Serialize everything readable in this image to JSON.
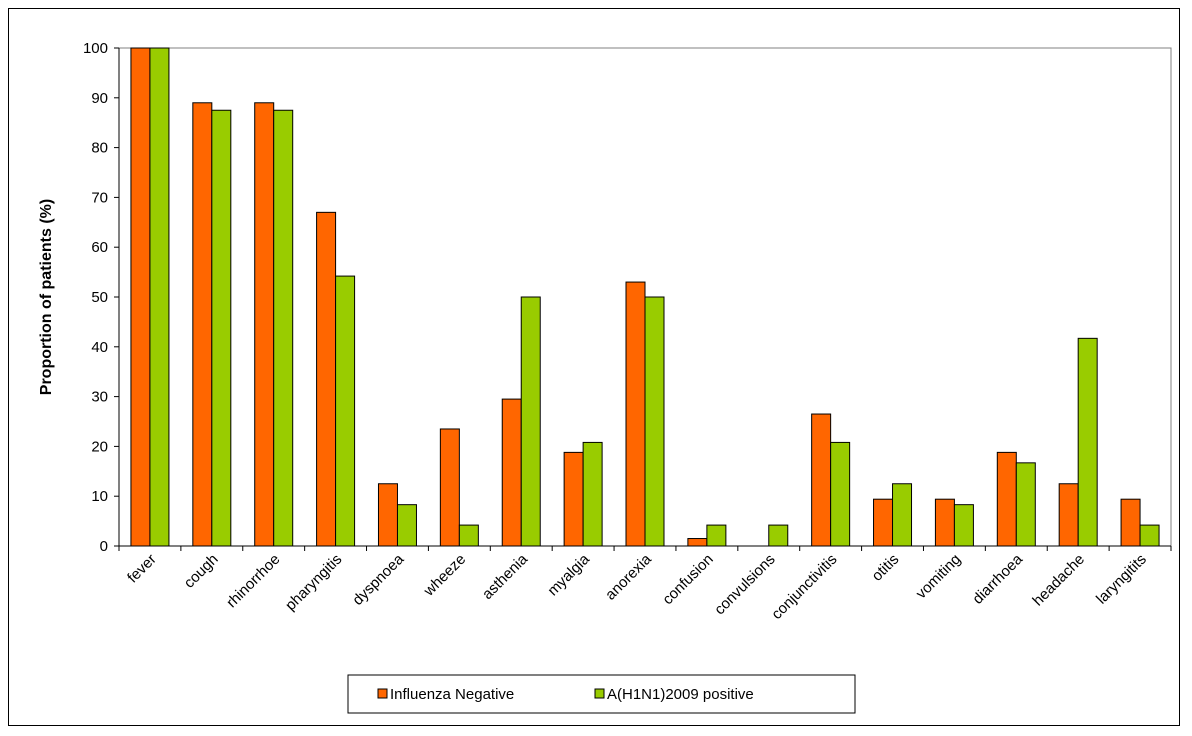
{
  "chart_data": {
    "type": "bar",
    "title": "",
    "xlabel": "",
    "ylabel": "Proportion of patients (%)",
    "ylim": [
      0,
      100
    ],
    "yticks": [
      0,
      10,
      20,
      30,
      40,
      50,
      60,
      70,
      80,
      90,
      100
    ],
    "grid": false,
    "legend_position": "bottom",
    "categories": [
      "fever",
      "cough",
      "rhinorrhoe",
      "pharyngitis",
      "dyspnoea",
      "wheeze",
      "asthenia",
      "myalgia",
      "anorexia",
      "confusion",
      "convulsions",
      "conjunctivitis",
      "otitis",
      "vomiting",
      "diarrhoea",
      "headache",
      "laryngitits"
    ],
    "series": [
      {
        "name": "Influenza Negative",
        "color": "#FF6600",
        "values": [
          100,
          89,
          89,
          67,
          12.5,
          23.5,
          29.5,
          18.8,
          53,
          1.5,
          0,
          26.5,
          9.4,
          9.4,
          18.8,
          12.5,
          9.4
        ]
      },
      {
        "name": "A(H1N1)2009 positive",
        "color": "#99CC00",
        "values": [
          100,
          87.5,
          87.5,
          54.2,
          8.3,
          4.2,
          50,
          20.8,
          50,
          4.2,
          4.2,
          20.8,
          12.5,
          8.3,
          16.7,
          41.7,
          4.2
        ]
      }
    ]
  }
}
